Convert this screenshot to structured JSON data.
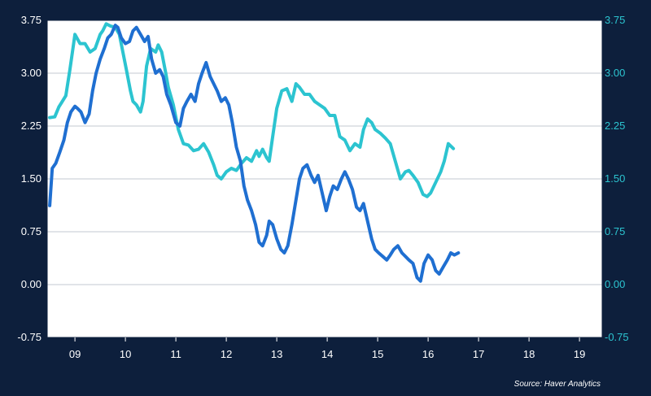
{
  "chart_data": {
    "type": "line",
    "title": "",
    "xlabel": "",
    "ylabel": "",
    "xlim": [
      8.45,
      19.45
    ],
    "xticks": [
      9,
      10,
      11,
      12,
      13,
      14,
      15,
      16,
      17,
      18,
      19
    ],
    "xtick_labels": [
      "09",
      "10",
      "11",
      "12",
      "13",
      "14",
      "15",
      "16",
      "17",
      "18",
      "19"
    ],
    "ylim": [
      -0.75,
      3.75
    ],
    "yticks": [
      -0.75,
      0.0,
      0.75,
      1.5,
      2.25,
      3.0,
      3.75
    ],
    "ytick_labels": [
      "-0.75",
      "0.00",
      "0.75",
      "1.50",
      "2.25",
      "3.00",
      "3.75"
    ],
    "right_ytick_labels": [
      "-0.75",
      "0.00",
      "0.75",
      "1.50",
      "2.25",
      "3.00",
      "3.75"
    ],
    "right_axis_color": "#2cc4d0",
    "grid": true,
    "background_color": "#ffffff",
    "frame_color": "#0d1f3c",
    "source": "Source: Haver Analytics",
    "series": [
      {
        "color": "#2cc4d0",
        "x": [
          8.5,
          8.6,
          8.68,
          8.75,
          8.82,
          8.9,
          8.95,
          9.0,
          9.1,
          9.2,
          9.3,
          9.4,
          9.5,
          9.55,
          9.62,
          9.7,
          9.8,
          9.88,
          9.95,
          10.02,
          10.1,
          10.15,
          10.22,
          10.3,
          10.35,
          10.42,
          10.5,
          10.6,
          10.65,
          10.72,
          10.8,
          10.85,
          10.95,
          11.05,
          11.15,
          11.25,
          11.35,
          11.45,
          11.55,
          11.65,
          11.75,
          11.82,
          11.9,
          12.0,
          12.1,
          12.2,
          12.3,
          12.4,
          12.5,
          12.6,
          12.65,
          12.72,
          12.8,
          12.85,
          12.92,
          13.0,
          13.1,
          13.2,
          13.3,
          13.38,
          13.45,
          13.55,
          13.65,
          13.75,
          13.85,
          13.95,
          14.05,
          14.15,
          14.25,
          14.35,
          14.45,
          14.55,
          14.65,
          14.72,
          14.8,
          14.88,
          14.95,
          15.05,
          15.15,
          15.25,
          15.35,
          15.45,
          15.55,
          15.62,
          15.7,
          15.8,
          15.9,
          15.98,
          16.05,
          16.15,
          16.25,
          16.32,
          16.4,
          16.5
        ],
        "y": [
          2.37,
          2.38,
          2.52,
          2.6,
          2.68,
          3.05,
          3.3,
          3.55,
          3.42,
          3.42,
          3.3,
          3.35,
          3.55,
          3.6,
          3.7,
          3.67,
          3.65,
          3.55,
          3.3,
          3.05,
          2.75,
          2.6,
          2.55,
          2.45,
          2.6,
          3.1,
          3.35,
          3.3,
          3.4,
          3.3,
          3.0,
          2.8,
          2.55,
          2.2,
          2.0,
          1.98,
          1.9,
          1.92,
          2.0,
          1.88,
          1.7,
          1.55,
          1.5,
          1.6,
          1.65,
          1.62,
          1.72,
          1.8,
          1.75,
          1.9,
          1.82,
          1.92,
          1.8,
          1.75,
          2.1,
          2.5,
          2.75,
          2.78,
          2.6,
          2.85,
          2.8,
          2.7,
          2.7,
          2.6,
          2.55,
          2.5,
          2.4,
          2.4,
          2.1,
          2.05,
          1.9,
          2.0,
          1.95,
          2.2,
          2.35,
          2.3,
          2.2,
          2.15,
          2.08,
          2.0,
          1.75,
          1.5,
          1.6,
          1.62,
          1.55,
          1.45,
          1.28,
          1.25,
          1.3,
          1.45,
          1.6,
          1.75,
          2.0,
          1.93
        ]
      },
      {
        "color": "#1f6fd1",
        "x": [
          8.5,
          8.55,
          8.62,
          8.7,
          8.78,
          8.85,
          8.92,
          9.0,
          9.05,
          9.12,
          9.2,
          9.28,
          9.35,
          9.42,
          9.5,
          9.58,
          9.65,
          9.72,
          9.8,
          9.85,
          9.92,
          10.0,
          10.08,
          10.15,
          10.22,
          10.3,
          10.38,
          10.45,
          10.52,
          10.6,
          10.68,
          10.75,
          10.82,
          10.9,
          11.0,
          11.08,
          11.15,
          11.22,
          11.3,
          11.38,
          11.45,
          11.52,
          11.6,
          11.68,
          11.75,
          11.82,
          11.9,
          11.98,
          12.05,
          12.12,
          12.2,
          12.28,
          12.35,
          12.42,
          12.5,
          12.58,
          12.65,
          12.72,
          12.8,
          12.85,
          12.92,
          13.0,
          13.08,
          13.15,
          13.22,
          13.3,
          13.38,
          13.45,
          13.52,
          13.6,
          13.68,
          13.75,
          13.82,
          13.9,
          13.98,
          14.05,
          14.12,
          14.2,
          14.28,
          14.35,
          14.42,
          14.5,
          14.58,
          14.65,
          14.72,
          14.8,
          14.88,
          14.95,
          15.02,
          15.1,
          15.18,
          15.25,
          15.32,
          15.4,
          15.48,
          15.55,
          15.62,
          15.7,
          15.78,
          15.85,
          15.92,
          16.0,
          16.08,
          16.15,
          16.22,
          16.3,
          16.38,
          16.45,
          16.52,
          16.6
        ],
        "y": [
          1.12,
          1.65,
          1.72,
          1.88,
          2.05,
          2.3,
          2.45,
          2.53,
          2.5,
          2.45,
          2.3,
          2.42,
          2.75,
          3.0,
          3.2,
          3.35,
          3.5,
          3.55,
          3.68,
          3.65,
          3.5,
          3.42,
          3.45,
          3.6,
          3.65,
          3.55,
          3.45,
          3.52,
          3.2,
          3.0,
          3.05,
          2.95,
          2.7,
          2.55,
          2.3,
          2.25,
          2.5,
          2.6,
          2.7,
          2.6,
          2.85,
          3.0,
          3.15,
          2.95,
          2.85,
          2.75,
          2.6,
          2.65,
          2.55,
          2.3,
          1.95,
          1.75,
          1.4,
          1.2,
          1.05,
          0.85,
          0.6,
          0.55,
          0.7,
          0.9,
          0.85,
          0.65,
          0.5,
          0.45,
          0.55,
          0.85,
          1.2,
          1.5,
          1.65,
          1.7,
          1.55,
          1.45,
          1.55,
          1.3,
          1.05,
          1.25,
          1.4,
          1.35,
          1.5,
          1.6,
          1.5,
          1.35,
          1.1,
          1.05,
          1.15,
          0.9,
          0.65,
          0.5,
          0.45,
          0.4,
          0.35,
          0.42,
          0.5,
          0.55,
          0.45,
          0.4,
          0.35,
          0.3,
          0.1,
          0.05,
          0.3,
          0.42,
          0.35,
          0.2,
          0.15,
          0.25,
          0.35,
          0.45,
          0.42,
          0.45
        ]
      }
    ]
  }
}
